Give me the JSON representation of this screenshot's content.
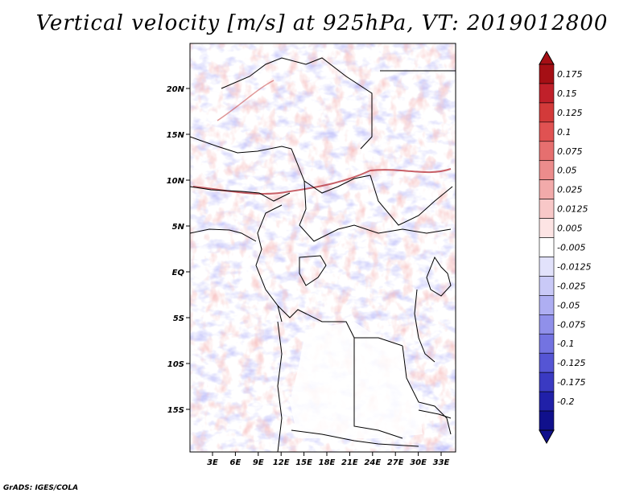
{
  "title": "Vertical velocity [m/s] at 925hPa, VT: 2019012800",
  "credit": "GrADS: IGES/COLA",
  "map": {
    "lon_range": [
      0,
      35
    ],
    "lat_range": [
      -20,
      25
    ],
    "lat_ticks": [
      "20N",
      "15N",
      "10N",
      "5N",
      "EQ",
      "5S",
      "10S",
      "15S"
    ],
    "lon_ticks": [
      "3E",
      "6E",
      "9E",
      "12E",
      "15E",
      "18E",
      "21E",
      "24E",
      "27E",
      "30E",
      "33E"
    ]
  },
  "colorbar": {
    "labels": [
      "0.175",
      "0.15",
      "0.125",
      "0.1",
      "0.075",
      "0.05",
      "0.025",
      "0.0125",
      "0.005",
      "-0.005",
      "-0.0125",
      "-0.025",
      "-0.05",
      "-0.075",
      "-0.1",
      "-0.125",
      "-0.175",
      "-0.2"
    ],
    "colors": [
      "#a50f15",
      "#c0202a",
      "#d33a3a",
      "#e05252",
      "#e66f6f",
      "#ec8c8c",
      "#f2aaaa",
      "#f8c8c8",
      "#fde4e4",
      "#ffffff",
      "#e2e2fb",
      "#c9c9f7",
      "#aeaef2",
      "#9090ea",
      "#7373e1",
      "#5555d4",
      "#3a3ac2",
      "#2020a8",
      "#10108c"
    ]
  }
}
